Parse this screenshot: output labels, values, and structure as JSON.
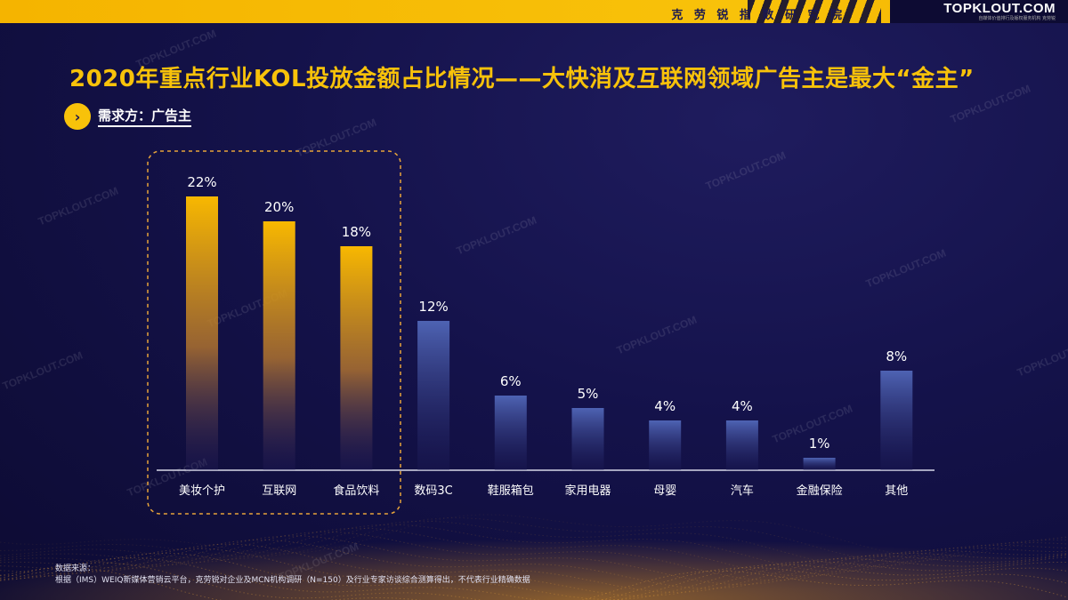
{
  "header": {
    "institute": "克 劳 锐 指 数 研 究 院",
    "logo": "TOPKLOUT.COM",
    "logo_sub": "自媒体价值排行及版权服务机构 克劳锐"
  },
  "page": {
    "title": "2020年重点行业KOL投放金额占比情况——大快消及互联网领域广告主是最大“金主”",
    "subhead": "需求方：广告主",
    "subhead_icon": "chevron-right-icon",
    "watermark": "TOPKLOUT.COM"
  },
  "source": {
    "label": "数据来源：",
    "text": "根据（IMS）WEIQ新媒体营销云平台，克劳锐对企业及MCN机构调研（N=150）及行业专家访谈综合测算得出，不代表行业精确数据"
  },
  "colors": {
    "accent": "#f8c20a",
    "highlight_bar_top": "#f5b400",
    "normal_bar_top": "#4a5fae",
    "background": "#14124a"
  },
  "chart_data": {
    "type": "bar",
    "title": "2020年重点行业KOL投放金额占比情况",
    "categories": [
      "美妆个护",
      "互联网",
      "食品饮料",
      "数码3C",
      "鞋服箱包",
      "家用电器",
      "母婴",
      "汽车",
      "金融保险",
      "其他"
    ],
    "values": [
      22,
      20,
      18,
      12,
      6,
      5,
      4,
      4,
      1,
      8
    ],
    "value_labels": [
      "22%",
      "20%",
      "18%",
      "12%",
      "6%",
      "5%",
      "4%",
      "4%",
      "1%",
      "8%"
    ],
    "unit": "%",
    "highlighted": [
      "美妆个护",
      "互联网",
      "食品饮料"
    ],
    "ylim": [
      0,
      22
    ],
    "xlabel": "",
    "ylabel": "",
    "grid": false,
    "legend": "none"
  }
}
